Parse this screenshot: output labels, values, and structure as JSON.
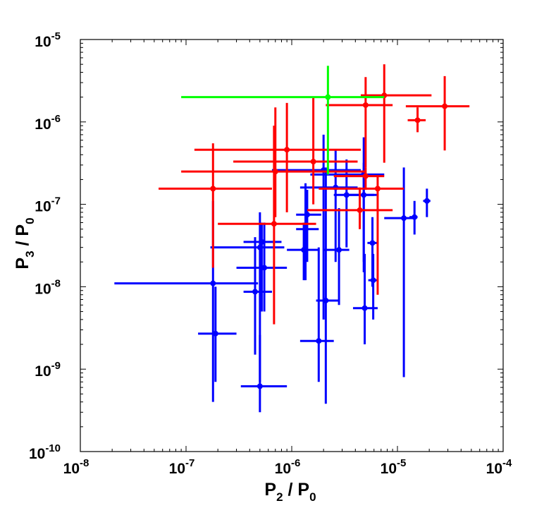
{
  "chart_data": {
    "type": "scatter",
    "title": "",
    "xlabel": {
      "main": "P",
      "sub": "2",
      "sep": " / ",
      "main2": "P",
      "sub2": "0"
    },
    "ylabel": {
      "main": "P",
      "sub": "3",
      "sep": " / ",
      "main2": "P",
      "sub2": "0"
    },
    "xscale": "log",
    "yscale": "log",
    "xlim": [
      1e-08,
      0.0001
    ],
    "ylim": [
      1e-10,
      1e-05
    ],
    "xticks": [
      {
        "value": 1e-08,
        "base": "10",
        "exp": "-8"
      },
      {
        "value": 1e-07,
        "base": "10",
        "exp": "-7"
      },
      {
        "value": 1e-06,
        "base": "10",
        "exp": "-6"
      },
      {
        "value": 1e-05,
        "base": "10",
        "exp": "-5"
      },
      {
        "value": 0.0001,
        "base": "10",
        "exp": "-4"
      }
    ],
    "yticks": [
      {
        "value": 1e-10,
        "base": "10",
        "exp": "-10"
      },
      {
        "value": 1e-09,
        "base": "10",
        "exp": "-9"
      },
      {
        "value": 1e-08,
        "base": "10",
        "exp": "-8"
      },
      {
        "value": 1e-07,
        "base": "10",
        "exp": "-7"
      },
      {
        "value": 1e-06,
        "base": "10",
        "exp": "-6"
      },
      {
        "value": 1e-05,
        "base": "10",
        "exp": "-5"
      }
    ],
    "grid": false,
    "series": [
      {
        "name": "blue",
        "color": "#0000ff",
        "points": [
          {
            "x": 1.8e-07,
            "y": 1.1e-08,
            "xerr": [
              2.1e-08,
              4.8e-07
            ],
            "yerr": [
              4e-10,
              1.1e-07
            ]
          },
          {
            "x": 1.9e-07,
            "y": 2.7e-09,
            "xerr": [
              1.3e-07,
              3e-07
            ],
            "yerr": [
              7e-10,
              1e-08
            ]
          },
          {
            "x": 5e-07,
            "y": 6.2e-10,
            "xerr": [
              3.3e-07,
              9e-07
            ],
            "yerr": [
              3e-10,
              2.6e-09
            ]
          },
          {
            "x": 5e-07,
            "y": 3e-08,
            "xerr": [
              1.7e-07,
              8.5e-07
            ],
            "yerr": [
              7e-10,
              8e-08
            ]
          },
          {
            "x": 5.2e-07,
            "y": 3.5e-08,
            "xerr": [
              3.5e-07,
              8e-07
            ],
            "yerr": [
              5e-09,
              6e-08
            ]
          },
          {
            "x": 4.5e-07,
            "y": 8.7e-09,
            "xerr": [
              3.5e-07,
              6.5e-07
            ],
            "yerr": [
              1.5e-09,
              4e-08
            ]
          },
          {
            "x": 5.5e-07,
            "y": 1.7e-08,
            "xerr": [
              3e-07,
              9e-07
            ],
            "yerr": [
              5e-09,
              6e-08
            ]
          },
          {
            "x": 1.35e-06,
            "y": 5e-08,
            "xerr": [
              1.1e-06,
              1.8e-06
            ],
            "yerr": [
              1.2e-08,
              1.8e-07
            ]
          },
          {
            "x": 1.4e-06,
            "y": 7.5e-08,
            "xerr": [
              1.1e-06,
              1.9e-06
            ],
            "yerr": [
              2e-08,
              1.5e-07
            ]
          },
          {
            "x": 1.3e-06,
            "y": 2.8e-08,
            "xerr": [
              9e-07,
              1.8e-06
            ],
            "yerr": [
              1.2e-08,
              6e-08
            ]
          },
          {
            "x": 1.8e-06,
            "y": 2.2e-09,
            "xerr": [
              1.2e-06,
              2.5e-06
            ],
            "yerr": [
              7e-10,
              3e-08
            ]
          },
          {
            "x": 2.1e-06,
            "y": 6.8e-09,
            "xerr": [
              1.7e-06,
              2.8e-06
            ],
            "yerr": [
              3.8e-10,
              2.8e-07
            ]
          },
          {
            "x": 2e-06,
            "y": 2.6e-07,
            "xerr": [
              6.5e-07,
              4.5e-06
            ],
            "yerr": [
              4e-09,
              7e-07
            ]
          },
          {
            "x": 2.6e-06,
            "y": 1.6e-07,
            "xerr": [
              1.2e-06,
              4.2e-06
            ],
            "yerr": [
              2e-08,
              4.5e-07
            ]
          },
          {
            "x": 3.3e-06,
            "y": 1.3e-07,
            "xerr": [
              2.5e-06,
              6e-06
            ],
            "yerr": [
              3e-08,
              3.5e-07
            ]
          },
          {
            "x": 2.8e-06,
            "y": 2.8e-08,
            "xerr": [
              2e-06,
              3.5e-06
            ],
            "yerr": [
              6e-09,
              9e-08
            ]
          },
          {
            "x": 4.8e-06,
            "y": 1.3e-07,
            "xerr": [
              3.5e-06,
              6.5e-06
            ],
            "yerr": [
              2e-08,
              6.5e-07
            ]
          },
          {
            "x": 4.9e-06,
            "y": 5.5e-09,
            "xerr": [
              3.8e-06,
              6.5e-06
            ],
            "yerr": [
              2e-09,
              2.5e-08
            ]
          },
          {
            "x": 5.8e-06,
            "y": 3.4e-08,
            "xerr": [
              5.2e-06,
              6.5e-06
            ],
            "yerr": [
              1e-08,
              7e-08
            ]
          },
          {
            "x": 5.9e-06,
            "y": 1.2e-08,
            "xerr": [
              5.3e-06,
              6.5e-06
            ],
            "yerr": [
              4e-09,
              2.5e-08
            ]
          },
          {
            "x": 4.8e-06,
            "y": 2.3e-07,
            "xerr": [
              1.5e-06,
              7.5e-06
            ],
            "yerr": [
              1.5e-08,
              3.2e-07
            ]
          },
          {
            "x": 1.15e-05,
            "y": 6.8e-08,
            "xerr": [
              7.5e-06,
              1.5e-05
            ],
            "yerr": [
              8e-10,
              2.8e-07
            ]
          },
          {
            "x": 1.45e-05,
            "y": 7e-08,
            "xerr": [
              1.3e-05,
              1.55e-05
            ],
            "yerr": [
              4.3e-08,
              1.1e-07
            ]
          },
          {
            "x": 1.9e-05,
            "y": 1.1e-07,
            "xerr": [
              1.75e-05,
              2.05e-05
            ],
            "yerr": [
              7e-08,
              1.55e-07
            ]
          }
        ]
      },
      {
        "name": "red",
        "color": "#ff0000",
        "points": [
          {
            "x": 1.8e-07,
            "y": 1.55e-07,
            "xerr": [
              5.5e-08,
              6.5e-07
            ],
            "yerr": [
              1.7e-08,
              5.5e-07
            ]
          },
          {
            "x": 6.8e-07,
            "y": 5.8e-08,
            "xerr": [
              2e-07,
              1.7e-06
            ],
            "yerr": [
              3.5e-09,
              9e-07
            ]
          },
          {
            "x": 7e-07,
            "y": 2.5e-07,
            "xerr": [
              9e-08,
              5e-06
            ],
            "yerr": [
              7e-08,
              1.5e-06
            ]
          },
          {
            "x": 9e-07,
            "y": 4.6e-07,
            "xerr": [
              1.2e-07,
              4.5e-06
            ],
            "yerr": [
              8e-08,
              1.7e-06
            ]
          },
          {
            "x": 1.6e-06,
            "y": 3.3e-07,
            "xerr": [
              2.8e-07,
              4.2e-06
            ],
            "yerr": [
              1e-07,
              2e-06
            ]
          },
          {
            "x": 4.4e-06,
            "y": 8.5e-08,
            "xerr": [
              1.4e-06,
              9e-06
            ],
            "yerr": [
              5e-08,
              1.6e-07
            ]
          },
          {
            "x": 5e-06,
            "y": 1.6e-06,
            "xerr": [
              2.1e-06,
              9e-06
            ],
            "yerr": [
              2.8e-07,
              3.5e-06
            ]
          },
          {
            "x": 6.5e-06,
            "y": 1.55e-07,
            "xerr": [
              1.8e-06,
              1.15e-05
            ],
            "yerr": [
              8e-09,
              2.2e-07
            ]
          },
          {
            "x": 7.5e-06,
            "y": 2.1e-06,
            "xerr": [
              4.5e-06,
              2.1e-05
            ],
            "yerr": [
              3.2e-07,
              5e-06
            ]
          },
          {
            "x": 1.55e-05,
            "y": 1.05e-06,
            "xerr": [
              1.25e-05,
              1.85e-05
            ],
            "yerr": [
              7.5e-07,
              1.5e-06
            ]
          },
          {
            "x": 2.8e-05,
            "y": 1.55e-06,
            "xerr": [
              1.2e-05,
              4.8e-05
            ],
            "yerr": [
              4.5e-07,
              3.6e-06
            ]
          },
          {
            "x": 5e-06,
            "y": 2.2e-07,
            "xerr": [
              2.5e-06,
              7.5e-06
            ],
            "yerr": [
              1.5e-07,
              2.8e-07
            ]
          }
        ]
      },
      {
        "name": "green",
        "color": "#00ff00",
        "points": [
          {
            "x": 2.2e-06,
            "y": 2e-06,
            "xerr": [
              9e-08,
              7.5e-06
            ],
            "yerr": [
              2.3e-07,
              4.8e-06
            ]
          }
        ]
      }
    ]
  }
}
